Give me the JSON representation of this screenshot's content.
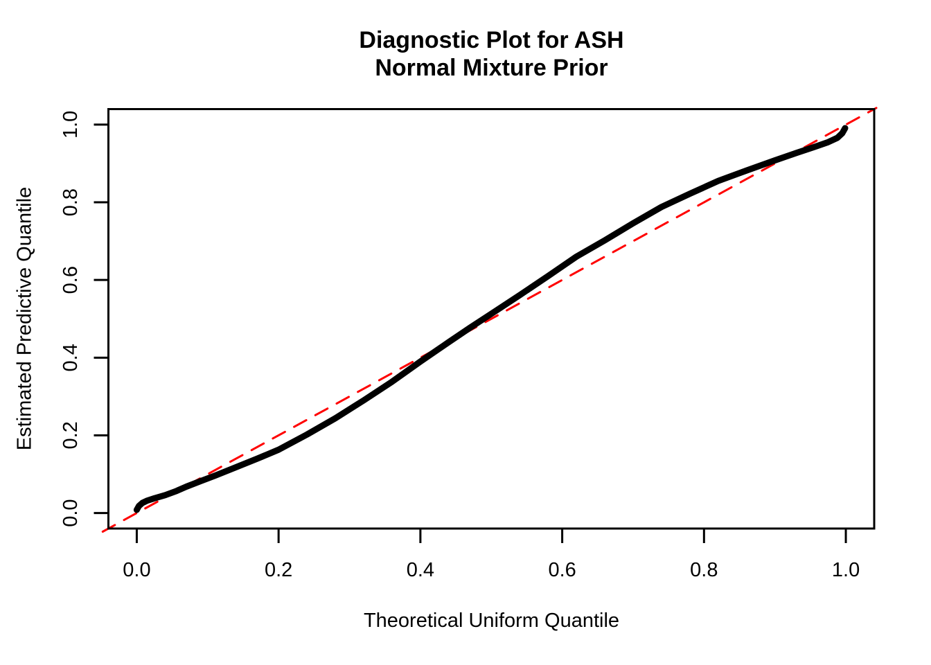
{
  "chart_data": {
    "type": "line",
    "title": "Diagnostic Plot for ASH",
    "subtitle": "Normal Mixture Prior",
    "xlabel": "Theoretical Uniform Quantile",
    "ylabel": "Estimated Predictive Quantile",
    "xlim": [
      -0.04,
      1.04
    ],
    "ylim": [
      -0.04,
      1.04
    ],
    "grid": false,
    "legend": null,
    "background_color": "#ffffff",
    "frame_color": "#000000",
    "x_ticks": [
      0.0,
      0.2,
      0.4,
      0.6,
      0.8,
      1.0
    ],
    "x_tick_labels": [
      "0.0",
      "0.2",
      "0.4",
      "0.6",
      "0.8",
      "1.0"
    ],
    "y_ticks": [
      0.0,
      0.2,
      0.4,
      0.6,
      0.8,
      1.0
    ],
    "y_tick_labels": [
      "0.0",
      "0.2",
      "0.4",
      "0.6",
      "0.8",
      "1.0"
    ],
    "series": [
      {
        "name": "estimated-predictive-quantile-curve",
        "color": "#000000",
        "style": "solid",
        "line_width": 9,
        "points": [
          [
            0.0,
            0.008
          ],
          [
            0.003,
            0.018
          ],
          [
            0.008,
            0.026
          ],
          [
            0.015,
            0.032
          ],
          [
            0.025,
            0.038
          ],
          [
            0.04,
            0.046
          ],
          [
            0.055,
            0.056
          ],
          [
            0.07,
            0.068
          ],
          [
            0.09,
            0.082
          ],
          [
            0.11,
            0.096
          ],
          [
            0.14,
            0.118
          ],
          [
            0.17,
            0.14
          ],
          [
            0.2,
            0.163
          ],
          [
            0.24,
            0.202
          ],
          [
            0.28,
            0.244
          ],
          [
            0.32,
            0.29
          ],
          [
            0.36,
            0.338
          ],
          [
            0.4,
            0.39
          ],
          [
            0.44,
            0.44
          ],
          [
            0.47,
            0.477
          ],
          [
            0.5,
            0.513
          ],
          [
            0.54,
            0.561
          ],
          [
            0.58,
            0.61
          ],
          [
            0.62,
            0.66
          ],
          [
            0.66,
            0.702
          ],
          [
            0.7,
            0.746
          ],
          [
            0.74,
            0.788
          ],
          [
            0.78,
            0.822
          ],
          [
            0.82,
            0.855
          ],
          [
            0.86,
            0.882
          ],
          [
            0.9,
            0.908
          ],
          [
            0.93,
            0.927
          ],
          [
            0.955,
            0.942
          ],
          [
            0.975,
            0.955
          ],
          [
            0.988,
            0.966
          ],
          [
            0.995,
            0.978
          ],
          [
            0.999,
            0.991
          ]
        ]
      },
      {
        "name": "identity-reference-line",
        "color": "#FF0000",
        "style": "dashed",
        "line_width": 3,
        "dash_pattern": [
          20,
          15
        ],
        "points": [
          [
            -0.048,
            -0.048
          ],
          [
            1.043,
            1.043
          ]
        ]
      }
    ]
  }
}
